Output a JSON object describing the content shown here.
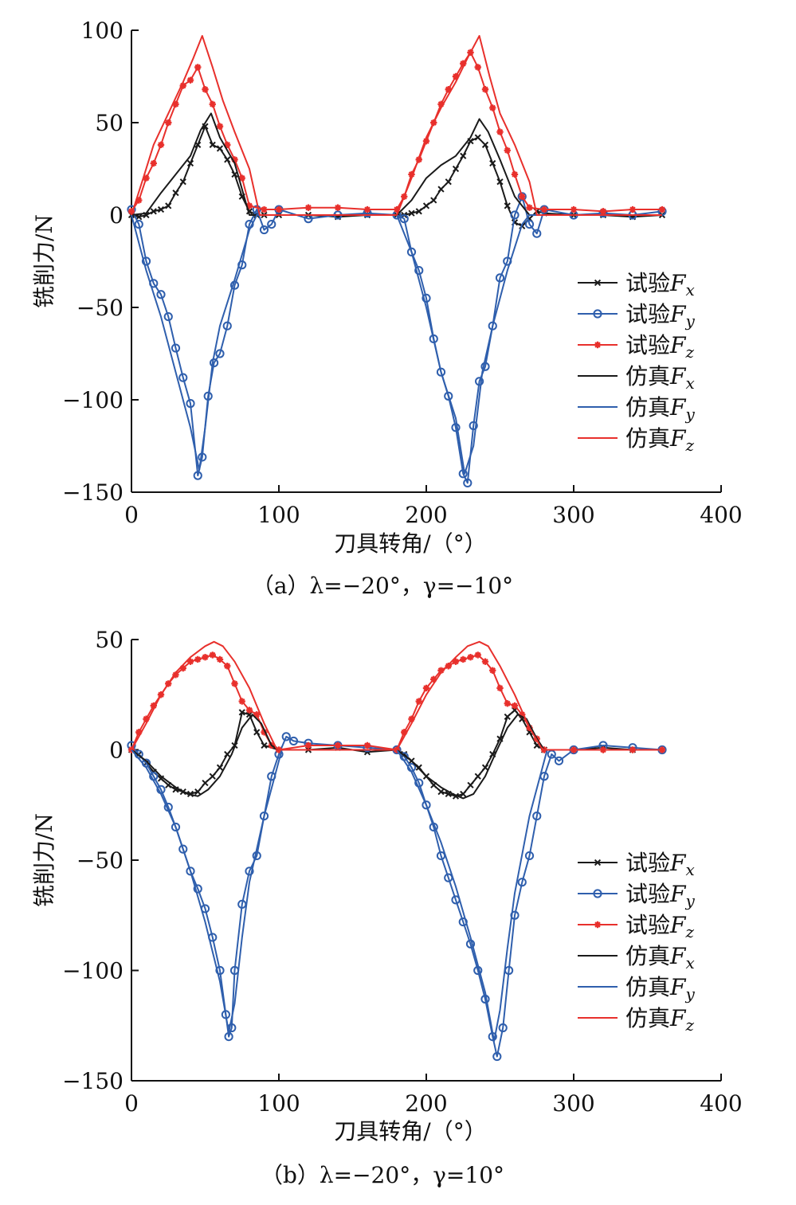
{
  "chart_data": [
    {
      "type": "line",
      "caption": "（a）λ=−20°，γ=−10°",
      "xlabel": "刀具转角/（°）",
      "ylabel": "铣削力/N",
      "xlim": [
        0,
        400
      ],
      "ylim": [
        -150,
        100
      ],
      "xticks": [
        "0",
        "100",
        "200",
        "300",
        "400"
      ],
      "yticks": [
        "100",
        "50",
        "0",
        "−50",
        "−100",
        "−150"
      ],
      "legend_position": "right",
      "series": [
        {
          "name": "试验F_x",
          "legend": [
            "试验",
            "F",
            "x"
          ],
          "color": "#1a1a1a",
          "marker": "x",
          "kind": "test",
          "x": [
            0,
            5,
            10,
            15,
            20,
            25,
            30,
            35,
            40,
            45,
            50,
            55,
            60,
            65,
            70,
            75,
            80,
            85,
            90,
            100,
            120,
            140,
            160,
            180,
            185,
            190,
            195,
            200,
            205,
            210,
            215,
            220,
            225,
            230,
            235,
            240,
            245,
            250,
            255,
            260,
            265,
            270,
            275,
            280,
            300,
            320,
            340,
            360
          ],
          "y": [
            0,
            -1,
            0,
            2,
            3,
            5,
            12,
            18,
            28,
            38,
            48,
            38,
            36,
            30,
            22,
            10,
            2,
            0,
            0,
            0,
            0,
            -1,
            0,
            0,
            0,
            1,
            2,
            5,
            8,
            14,
            18,
            25,
            32,
            40,
            42,
            38,
            28,
            18,
            5,
            -4,
            -6,
            -2,
            2,
            1,
            0,
            0,
            -1,
            0
          ]
        },
        {
          "name": "试验F_y",
          "legend": [
            "试验",
            "F",
            "y"
          ],
          "color": "#2f5fad",
          "marker": "o",
          "kind": "test",
          "x": [
            0,
            5,
            10,
            15,
            20,
            25,
            30,
            35,
            40,
            45,
            48,
            52,
            56,
            60,
            65,
            70,
            75,
            80,
            85,
            90,
            95,
            100,
            120,
            140,
            160,
            180,
            185,
            190,
            195,
            200,
            205,
            210,
            215,
            220,
            225,
            228,
            232,
            236,
            240,
            245,
            250,
            255,
            260,
            265,
            270,
            275,
            280,
            300,
            320,
            340,
            360
          ],
          "y": [
            3,
            -5,
            -25,
            -37,
            -43,
            -55,
            -72,
            -88,
            -102,
            -141,
            -131,
            -98,
            -80,
            -75,
            -60,
            -38,
            -27,
            -5,
            3,
            -8,
            -5,
            3,
            -2,
            0,
            1,
            0,
            -2,
            -20,
            -30,
            -45,
            -67,
            -85,
            -98,
            -115,
            -140,
            -145,
            -114,
            -90,
            -82,
            -60,
            -34,
            -25,
            0,
            10,
            -5,
            -10,
            3,
            0,
            1,
            0,
            2
          ]
        },
        {
          "name": "试验F_z",
          "legend": [
            "试验",
            "F",
            "z"
          ],
          "color": "#e8302c",
          "marker": "*",
          "kind": "test",
          "x": [
            0,
            5,
            10,
            15,
            20,
            25,
            30,
            35,
            40,
            45,
            50,
            55,
            60,
            65,
            70,
            75,
            80,
            90,
            100,
            120,
            140,
            160,
            180,
            185,
            190,
            195,
            200,
            205,
            210,
            215,
            220,
            225,
            230,
            235,
            240,
            245,
            250,
            255,
            260,
            265,
            270,
            280,
            300,
            320,
            340,
            360
          ],
          "y": [
            2,
            8,
            20,
            28,
            38,
            50,
            60,
            70,
            73,
            80,
            68,
            60,
            48,
            38,
            30,
            20,
            5,
            3,
            3,
            4,
            4,
            3,
            3,
            10,
            22,
            30,
            40,
            50,
            60,
            68,
            75,
            82,
            88,
            80,
            68,
            58,
            45,
            35,
            22,
            10,
            4,
            3,
            3,
            2,
            3,
            3
          ]
        },
        {
          "name": "仿真F_x",
          "legend": [
            "仿真",
            "F",
            "x"
          ],
          "color": "#1a1a1a",
          "marker": "none",
          "kind": "sim",
          "x": [
            0,
            10,
            20,
            30,
            40,
            47,
            54,
            60,
            70,
            80,
            90,
            100,
            180,
            190,
            200,
            210,
            220,
            230,
            236,
            242,
            250,
            260,
            270,
            280,
            300,
            360
          ],
          "y": [
            0,
            1,
            12,
            22,
            32,
            46,
            55,
            42,
            28,
            0,
            0,
            0,
            0,
            8,
            20,
            27,
            32,
            42,
            52,
            45,
            30,
            10,
            0,
            0,
            0,
            0
          ]
        },
        {
          "name": "仿真F_y",
          "legend": [
            "仿真",
            "F",
            "y"
          ],
          "color": "#2f5fad",
          "marker": "none",
          "kind": "sim",
          "x": [
            0,
            10,
            20,
            30,
            40,
            46,
            50,
            55,
            60,
            70,
            80,
            85,
            90,
            100,
            180,
            190,
            200,
            210,
            220,
            226,
            232,
            238,
            245,
            255,
            265,
            270,
            280,
            360
          ],
          "y": [
            0,
            -30,
            -55,
            -85,
            -115,
            -138,
            -115,
            -80,
            -60,
            -35,
            -8,
            0,
            0,
            0,
            0,
            -20,
            -50,
            -85,
            -110,
            -140,
            -125,
            -85,
            -60,
            -30,
            -5,
            0,
            0,
            0
          ]
        },
        {
          "name": "仿真F_z",
          "legend": [
            "仿真",
            "F",
            "z"
          ],
          "color": "#e8302c",
          "marker": "none",
          "kind": "sim",
          "x": [
            0,
            8,
            15,
            25,
            35,
            42,
            48,
            55,
            62,
            70,
            80,
            87,
            100,
            180,
            190,
            200,
            210,
            220,
            228,
            236,
            243,
            250,
            260,
            270,
            275,
            280,
            360
          ],
          "y": [
            0,
            20,
            38,
            55,
            72,
            85,
            97,
            80,
            62,
            45,
            25,
            0,
            0,
            0,
            20,
            42,
            58,
            72,
            85,
            97,
            75,
            55,
            38,
            18,
            0,
            0,
            0
          ]
        }
      ]
    },
    {
      "type": "line",
      "caption": "（b）λ=−20°，γ=10°",
      "xlabel": "刀具转角/（°）",
      "ylabel": "铣削力/N",
      "xlim": [
        0,
        400
      ],
      "ylim": [
        -150,
        50
      ],
      "xticks": [
        "0",
        "100",
        "200",
        "300",
        "400"
      ],
      "yticks": [
        "50",
        "0",
        "−50",
        "−100",
        "−150"
      ],
      "legend_position": "right",
      "series": [
        {
          "name": "试验F_x",
          "legend": [
            "试验",
            "F",
            "x"
          ],
          "color": "#1a1a1a",
          "marker": "x",
          "kind": "test",
          "x": [
            0,
            5,
            10,
            15,
            20,
            25,
            30,
            35,
            40,
            45,
            50,
            55,
            60,
            65,
            70,
            75,
            80,
            85,
            90,
            100,
            120,
            140,
            160,
            180,
            185,
            190,
            195,
            200,
            205,
            210,
            215,
            220,
            225,
            230,
            235,
            240,
            245,
            250,
            255,
            260,
            265,
            270,
            275,
            280,
            300,
            320,
            340,
            360
          ],
          "y": [
            0,
            -2,
            -6,
            -10,
            -13,
            -16,
            -18,
            -19,
            -20,
            -19,
            -15,
            -12,
            -8,
            -2,
            2,
            17,
            16,
            8,
            2,
            0,
            0,
            1,
            -1,
            0,
            -2,
            -5,
            -8,
            -12,
            -16,
            -19,
            -20,
            -21,
            -20,
            -16,
            -12,
            -8,
            -2,
            5,
            15,
            18,
            14,
            8,
            2,
            0,
            0,
            1,
            0,
            0
          ]
        },
        {
          "name": "试验F_y",
          "legend": [
            "试验",
            "F",
            "y"
          ],
          "color": "#2f5fad",
          "marker": "o",
          "kind": "test",
          "x": [
            0,
            5,
            10,
            15,
            20,
            25,
            30,
            35,
            40,
            45,
            50,
            55,
            60,
            64,
            66,
            68,
            70,
            75,
            80,
            85,
            90,
            95,
            100,
            105,
            110,
            120,
            140,
            160,
            180,
            185,
            190,
            195,
            200,
            205,
            210,
            215,
            220,
            225,
            230,
            235,
            240,
            245,
            248,
            252,
            256,
            260,
            265,
            270,
            275,
            280,
            285,
            290,
            300,
            320,
            340,
            360
          ],
          "y": [
            2,
            -2,
            -6,
            -12,
            -18,
            -26,
            -35,
            -45,
            -55,
            -63,
            -72,
            -85,
            -100,
            -120,
            -130,
            -126,
            -100,
            -70,
            -55,
            -48,
            -30,
            -12,
            -2,
            6,
            4,
            3,
            2,
            1,
            0,
            -3,
            -8,
            -15,
            -25,
            -35,
            -48,
            -58,
            -68,
            -78,
            -88,
            -100,
            -113,
            -130,
            -139,
            -126,
            -100,
            -75,
            -60,
            -48,
            -30,
            -12,
            -2,
            -5,
            0,
            2,
            1,
            0
          ]
        },
        {
          "name": "试验F_z",
          "legend": [
            "试验",
            "F",
            "z"
          ],
          "color": "#e8302c",
          "marker": "*",
          "kind": "test",
          "x": [
            0,
            5,
            10,
            15,
            20,
            25,
            30,
            35,
            40,
            45,
            50,
            55,
            60,
            65,
            70,
            75,
            80,
            85,
            90,
            95,
            100,
            120,
            140,
            160,
            180,
            185,
            190,
            195,
            200,
            205,
            210,
            215,
            220,
            225,
            230,
            235,
            240,
            245,
            250,
            255,
            260,
            265,
            270,
            275,
            280,
            300,
            320,
            340,
            360
          ],
          "y": [
            0,
            8,
            14,
            20,
            25,
            30,
            34,
            37,
            40,
            41,
            42,
            43,
            41,
            38,
            30,
            22,
            18,
            16,
            8,
            2,
            0,
            2,
            2,
            2,
            0,
            8,
            14,
            22,
            28,
            32,
            36,
            38,
            40,
            41,
            42,
            43,
            40,
            36,
            28,
            21,
            20,
            16,
            10,
            5,
            0,
            0,
            0,
            0,
            0
          ]
        },
        {
          "name": "仿真F_x",
          "legend": [
            "仿真",
            "F",
            "x"
          ],
          "color": "#1a1a1a",
          "marker": "none",
          "kind": "sim",
          "x": [
            0,
            10,
            20,
            30,
            38,
            45,
            52,
            60,
            68,
            75,
            82,
            88,
            95,
            100,
            180,
            190,
            200,
            210,
            218,
            225,
            232,
            240,
            248,
            255,
            262,
            268,
            275,
            280,
            360
          ],
          "y": [
            0,
            -5,
            -12,
            -17,
            -20,
            -21,
            -18,
            -12,
            -2,
            10,
            16,
            12,
            2,
            0,
            0,
            -5,
            -12,
            -17,
            -20,
            -22,
            -20,
            -12,
            0,
            10,
            16,
            14,
            5,
            0,
            0
          ]
        },
        {
          "name": "仿真F_y",
          "legend": [
            "仿真",
            "F",
            "y"
          ],
          "color": "#2f5fad",
          "marker": "none",
          "kind": "sim",
          "x": [
            0,
            10,
            20,
            30,
            40,
            50,
            60,
            66,
            70,
            75,
            80,
            90,
            100,
            102,
            180,
            190,
            200,
            210,
            220,
            230,
            240,
            246,
            250,
            255,
            260,
            270,
            280,
            282,
            360
          ],
          "y": [
            0,
            -8,
            -20,
            -35,
            -55,
            -78,
            -105,
            -128,
            -115,
            -85,
            -60,
            -30,
            -5,
            0,
            0,
            -10,
            -25,
            -42,
            -62,
            -85,
            -110,
            -132,
            -118,
            -90,
            -65,
            -30,
            -5,
            0,
            0
          ]
        },
        {
          "name": "仿真F_z",
          "legend": [
            "仿真",
            "F",
            "z"
          ],
          "color": "#e8302c",
          "marker": "none",
          "kind": "sim",
          "x": [
            0,
            10,
            20,
            30,
            40,
            50,
            56,
            62,
            70,
            80,
            90,
            98,
            100,
            180,
            190,
            200,
            210,
            220,
            228,
            236,
            242,
            250,
            260,
            270,
            278,
            280,
            360
          ],
          "y": [
            0,
            12,
            25,
            35,
            42,
            47,
            49,
            47,
            40,
            28,
            12,
            1,
            0,
            0,
            12,
            25,
            35,
            42,
            47,
            49,
            47,
            38,
            25,
            10,
            1,
            0,
            0
          ]
        }
      ]
    }
  ]
}
